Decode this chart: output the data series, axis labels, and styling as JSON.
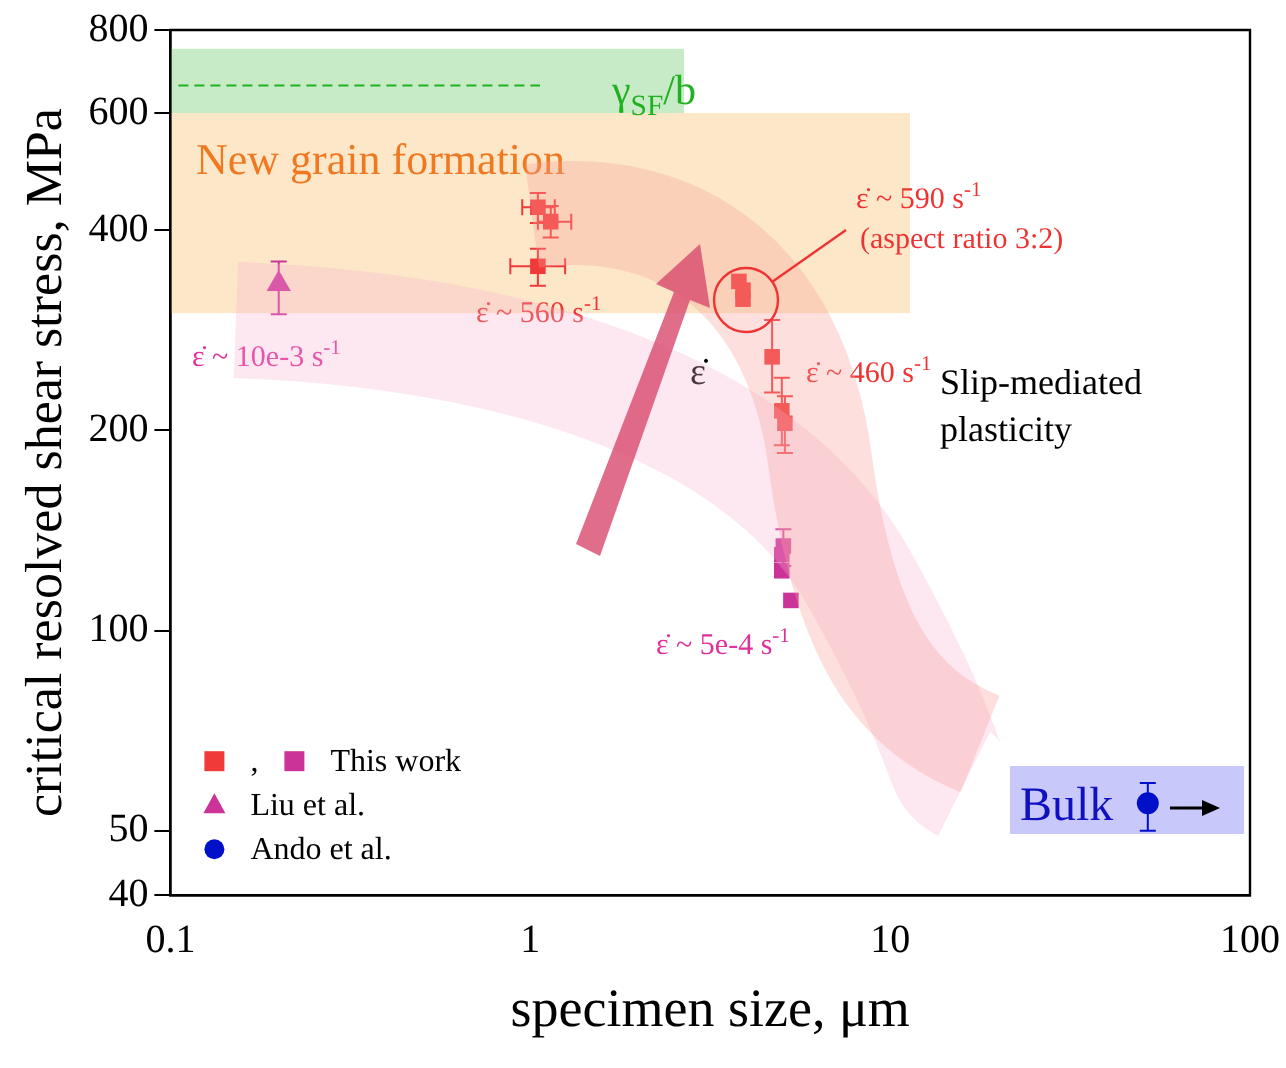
{
  "chart_data": {
    "type": "scatter",
    "xlabel": "specimen size, μm",
    "ylabel": "critical resolved shear stress, MPa",
    "log": "xy",
    "xlim": [
      0.1,
      100
    ],
    "xticks": [
      0.1,
      1,
      10,
      100
    ],
    "ylim": [
      40,
      800
    ],
    "yticks": [
      40,
      50,
      100,
      200,
      400,
      600,
      800
    ],
    "grid": false,
    "legend": "bottom left",
    "series": [
      {
        "name": ",",
        "color": "#f03a3a",
        "marker": "square",
        "x": [
          1.05,
          1.14,
          1.05,
          3.8,
          3.9,
          3.9,
          4.7,
          5.0,
          5.1
        ],
        "values": [
          433,
          412,
          353,
          335,
          325,
          315,
          258,
          214,
          205
        ],
        "errors": [
          [
            410,
            455
          ],
          [
            390,
            435
          ],
          [
            330,
            375
          ],
          null,
          null,
          null,
          [
            228,
            293
          ],
          [
            190,
            240
          ],
          [
            185,
            225
          ]
        ],
        "xerrors": [
          [
            0.95,
            1.17
          ],
          [
            1.05,
            1.3
          ],
          [
            0.88,
            1.25
          ],
          null,
          null,
          null,
          null,
          null,
          null
        ]
      },
      {
        "name": "This work",
        "color": "#cc3399",
        "marker": "square",
        "x": [
          5.05,
          5.0,
          5.0,
          5.3
        ],
        "values": [
          134,
          130,
          123,
          111
        ],
        "errors": [
          [
            125,
            142
          ],
          null,
          null,
          null
        ]
      },
      {
        "name": "Liu et al.",
        "color": "#cc3399",
        "marker": "triangle",
        "x": [
          0.2
        ],
        "values": [
          332
        ],
        "errors": [
          [
            299,
            359
          ]
        ]
      },
      {
        "name": "Ando et al.",
        "color": "#0010c8",
        "marker": "circle",
        "x": [
          52
        ],
        "values": [
          55
        ],
        "errors": [
          [
            50,
            59
          ]
        ]
      }
    ],
    "bands": [
      {
        "axis": "y",
        "from": 600,
        "to": 750,
        "label": "γ$_{SF}$/b",
        "color": "#bde8bd"
      },
      {
        "axis": "y",
        "from": 300,
        "to": 600,
        "label": "New grain formation",
        "color": "#fde3c0"
      }
    ],
    "ref_lines": [
      {
        "axis": "y",
        "value": 660,
        "color": "#20b020",
        "line_style": "dashed"
      }
    ],
    "annotations": [
      "ε̇ ~ 10e-3 s$^{-1}$",
      "ε̇ ~ 560 s$^{-1}$",
      "ε̇ ~ 590 s$^{-1}$",
      "(aspect ratio 3:2)",
      "ε̇",
      "ε̇ ~ 460 s$^{-1}$",
      "Slip-mediated plasticity",
      "ε̇ ~ 5e-4 s$^{-1}$",
      "Bulk"
    ]
  }
}
